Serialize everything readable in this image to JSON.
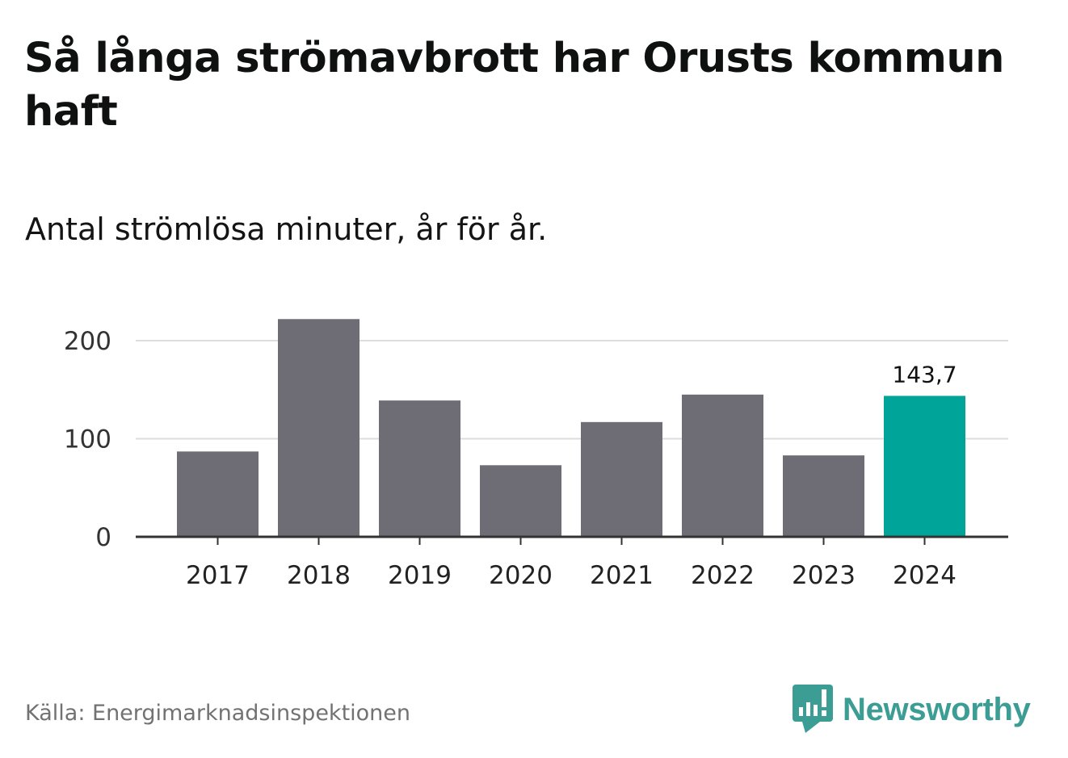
{
  "title": "Så långa strömavbrott har Orusts kommun haft",
  "subtitle": "Antal strömlösa minuter, år för år.",
  "source": "Källa: Energimarknadsinspektionen",
  "brand": {
    "name": "Newsworthy",
    "icon": "bar-chart-speech-bubble-icon",
    "color": "#3c9d95"
  },
  "colors": {
    "bar": "#6e6d75",
    "highlight": "#00a499",
    "grid": "#dddddd",
    "axis": "#333333"
  },
  "chart_data": {
    "type": "bar",
    "title": "Så långa strömavbrott har Orusts kommun haft",
    "subtitle": "Antal strömlösa minuter, år för år.",
    "xlabel": "",
    "ylabel": "",
    "categories": [
      "2017",
      "2018",
      "2019",
      "2020",
      "2021",
      "2022",
      "2023",
      "2024"
    ],
    "values": [
      87,
      222,
      139,
      73,
      117,
      145,
      83,
      143.7
    ],
    "highlight_index": 7,
    "data_labels": [
      {
        "index": 7,
        "text": "143,7"
      }
    ],
    "ylim": [
      0,
      200
    ],
    "yticks": [
      0,
      100,
      200
    ],
    "ytick_labels": [
      "0",
      "100",
      "200"
    ],
    "grid": true
  }
}
